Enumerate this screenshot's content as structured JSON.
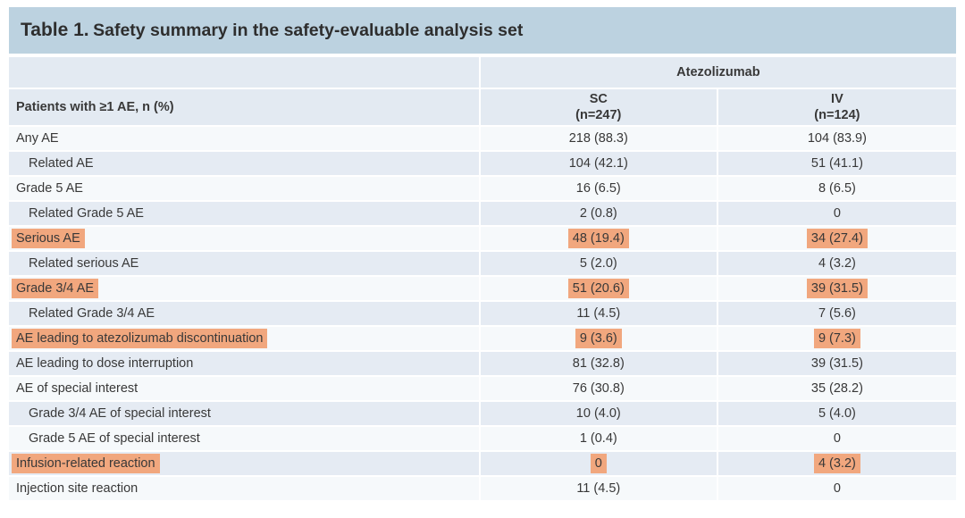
{
  "title": {
    "label": "Table 1.",
    "text": "Safety summary in the safety-evaluable analysis set"
  },
  "table": {
    "group_header": "Atezolizumab",
    "row_header": "Patients with ≥1 AE, n (%)",
    "columns": [
      {
        "name": "SC",
        "n": "(n=247)"
      },
      {
        "name": "IV",
        "n": "(n=124)"
      }
    ],
    "rows": [
      {
        "label": "Any AE",
        "sc": "218 (88.3)",
        "iv": "104 (83.9)",
        "indent": false,
        "highlight": false
      },
      {
        "label": "Related AE",
        "sc": "104 (42.1)",
        "iv": "51 (41.1)",
        "indent": true,
        "highlight": false
      },
      {
        "label": "Grade 5 AE",
        "sc": "16 (6.5)",
        "iv": "8 (6.5)",
        "indent": false,
        "highlight": false
      },
      {
        "label": "Related Grade 5 AE",
        "sc": "2 (0.8)",
        "iv": "0",
        "indent": true,
        "highlight": false
      },
      {
        "label": "Serious AE",
        "sc": "48 (19.4)",
        "iv": "34 (27.4)",
        "indent": false,
        "highlight": true
      },
      {
        "label": "Related serious AE",
        "sc": "5 (2.0)",
        "iv": "4 (3.2)",
        "indent": true,
        "highlight": false
      },
      {
        "label": "Grade 3/4 AE",
        "sc": "51 (20.6)",
        "iv": "39 (31.5)",
        "indent": false,
        "highlight": true
      },
      {
        "label": "Related Grade 3/4 AE",
        "sc": "11 (4.5)",
        "iv": "7 (5.6)",
        "indent": true,
        "highlight": false
      },
      {
        "label": "AE leading to atezolizumab discontinuation",
        "sc": "9 (3.6)",
        "iv": "9 (7.3)",
        "indent": false,
        "highlight": true
      },
      {
        "label": "AE leading to dose interruption",
        "sc": "81 (32.8)",
        "iv": "39 (31.5)",
        "indent": false,
        "highlight": false
      },
      {
        "label": "AE of special interest",
        "sc": "76 (30.8)",
        "iv": "35 (28.2)",
        "indent": false,
        "highlight": false
      },
      {
        "label": "Grade 3/4 AE of special interest",
        "sc": "10 (4.0)",
        "iv": "5 (4.0)",
        "indent": true,
        "highlight": false
      },
      {
        "label": "Grade 5 AE of special interest",
        "sc": "1 (0.4)",
        "iv": "0",
        "indent": true,
        "highlight": false
      },
      {
        "label": "Infusion-related reaction",
        "sc": "0",
        "iv": "4 (3.2)",
        "indent": false,
        "highlight": true
      },
      {
        "label": "Injection site reaction",
        "sc": "11 (4.5)",
        "iv": "0",
        "indent": false,
        "highlight": false
      }
    ]
  },
  "colors": {
    "title_bar": "#bcd2e0",
    "header_row": "#e3eaf2",
    "row_light": "#f6f9fb",
    "row_dark": "#e5ebf3",
    "highlight": "#f1a77e",
    "text": "#383838"
  }
}
